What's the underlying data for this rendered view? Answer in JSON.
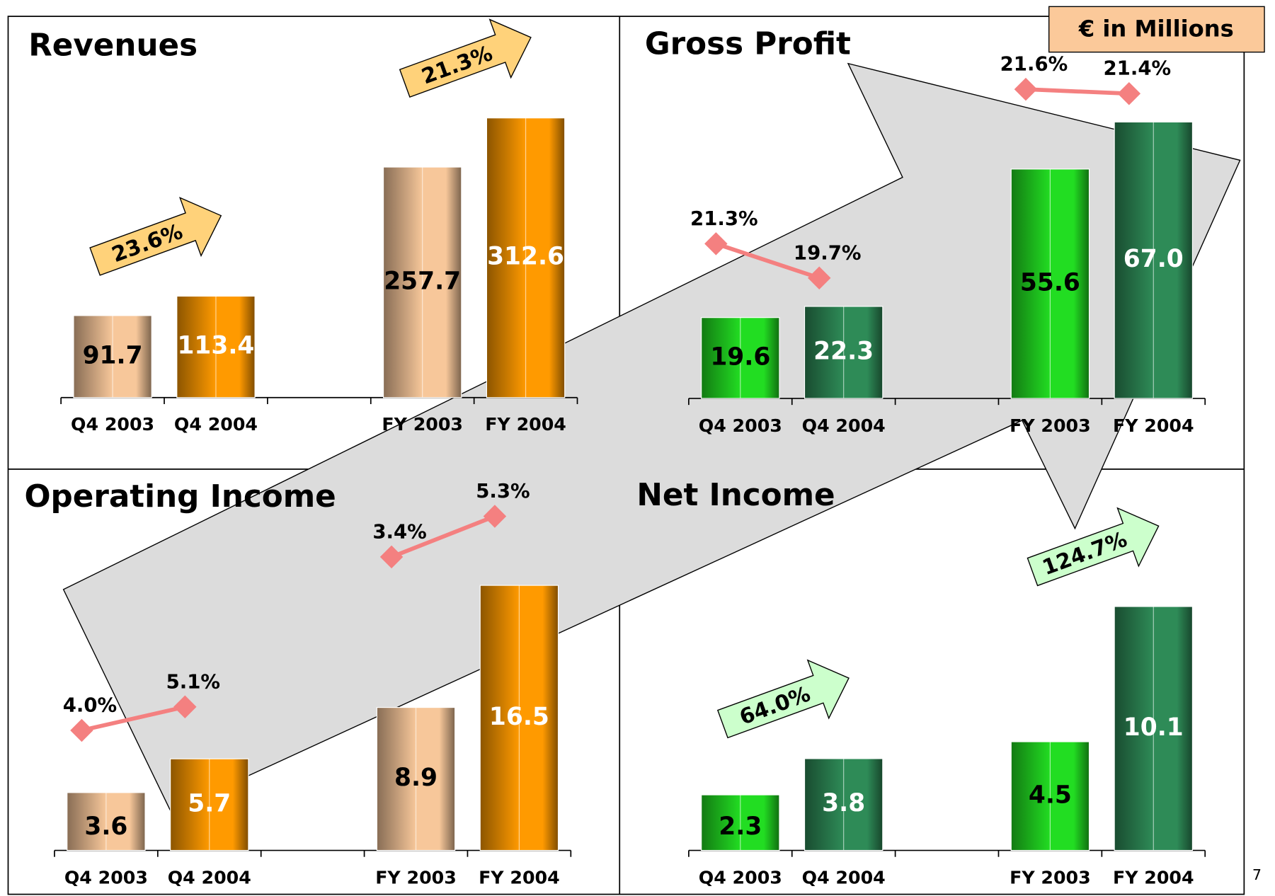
{
  "header_note": "€ in Millions",
  "page_number": "7",
  "chart_data": [
    {
      "type": "bar",
      "title": "Revenues",
      "categories": [
        "Q4 2003",
        "Q4 2004",
        null,
        "FY 2003",
        "FY 2004"
      ],
      "values": [
        91.7,
        113.4,
        null,
        257.7,
        312.6
      ],
      "colors": [
        "#f7c79a",
        "#ff9a00",
        null,
        "#f7c79a",
        "#ff9a00"
      ],
      "label_colors": [
        "#000000",
        "#ffffff",
        null,
        "#000000",
        "#ffffff"
      ],
      "annotations": [
        "23.6%",
        "21.3%"
      ],
      "annotation_color": "#ffd27a"
    },
    {
      "type": "bar",
      "title": "Gross Profit",
      "categories": [
        "Q4 2003",
        "Q4 2004",
        null,
        "FY 2003",
        "FY 2004"
      ],
      "values": [
        19.6,
        22.3,
        null,
        55.6,
        67.0
      ],
      "value_labels": [
        "19.6",
        "22.3",
        null,
        "55.6",
        "67.0"
      ],
      "colors": [
        "#22dd22",
        "#2e8b57",
        null,
        "#22dd22",
        "#2e8b57"
      ],
      "label_colors": [
        "#000000",
        "#ffffff",
        null,
        "#000000",
        "#ffffff"
      ],
      "margin": {
        "values": [
          21.3,
          19.7,
          null,
          21.6,
          21.4
        ],
        "value_labels": [
          "21.3%",
          "19.7%",
          null,
          "21.6%",
          "21.4%"
        ],
        "color": "#f48080"
      }
    },
    {
      "type": "bar",
      "title": "Operating Income",
      "categories": [
        "Q4 2003",
        "Q4 2004",
        null,
        "FY 2003",
        "FY 2004"
      ],
      "values": [
        3.6,
        5.7,
        null,
        8.9,
        16.5
      ],
      "colors": [
        "#f7c79a",
        "#ff9a00",
        null,
        "#f7c79a",
        "#ff9a00"
      ],
      "label_colors": [
        "#000000",
        "#ffffff",
        null,
        "#000000",
        "#ffffff"
      ],
      "margin": {
        "values": [
          4.0,
          5.1,
          null,
          3.4,
          5.3
        ],
        "value_labels": [
          "4.0%",
          "5.1%",
          null,
          "3.4%",
          "5.3%"
        ],
        "color": "#f48080"
      }
    },
    {
      "type": "bar",
      "title": "Net Income",
      "categories": [
        "Q4 2003",
        "Q4 2004",
        null,
        "FY 2003",
        "FY 2004"
      ],
      "values": [
        2.3,
        3.8,
        null,
        4.5,
        10.1
      ],
      "colors": [
        "#22dd22",
        "#2e8b57",
        null,
        "#22dd22",
        "#2e8b57"
      ],
      "label_colors": [
        "#000000",
        "#ffffff",
        null,
        "#000000",
        "#ffffff"
      ],
      "annotations": [
        "64.0%",
        "124.7%"
      ],
      "annotation_color": "#ccffcc"
    }
  ]
}
